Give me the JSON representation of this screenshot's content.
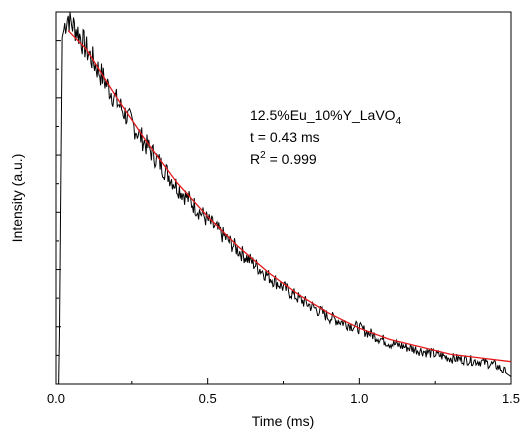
{
  "chart_data": {
    "type": "line",
    "title": "",
    "xlabel": "Time (ms)",
    "ylabel": "Intensity (a.u.)",
    "xlim": [
      0.0,
      1.5
    ],
    "ylim": [
      0.0,
      1.0
    ],
    "x_ticks": [
      "0.0",
      "0.5",
      "1.0",
      "1.5"
    ],
    "y_ticks_labeled": false,
    "grid": false,
    "annotation": {
      "sample": "12.5%Eu_10%Y_LaVO",
      "sample_subscript": "4",
      "lifetime": "t = 0.43 ms",
      "r_squared_prefix": "R",
      "r_squared_sup": "2",
      "r_squared_suffix": " = 0.999"
    },
    "series": [
      {
        "style": "measured",
        "color": "#000000",
        "x": [
          0.0,
          0.01,
          0.02,
          0.03,
          0.04,
          0.05,
          0.07,
          0.1,
          0.15,
          0.2,
          0.3,
          0.4,
          0.5,
          0.6,
          0.7,
          0.8,
          0.9,
          1.0,
          1.1,
          1.2,
          1.3,
          1.4,
          1.45,
          1.5
        ],
        "y": [
          0.0,
          0.0,
          0.93,
          0.97,
          0.99,
          0.97,
          0.95,
          0.9,
          0.83,
          0.76,
          0.64,
          0.53,
          0.44,
          0.36,
          0.29,
          0.23,
          0.18,
          0.15,
          0.11,
          0.09,
          0.07,
          0.06,
          0.05,
          0.02
        ]
      },
      {
        "style": "fit",
        "color": "#e41a1c",
        "x": [
          0.04,
          0.1,
          0.2,
          0.3,
          0.4,
          0.5,
          0.6,
          0.7,
          0.8,
          0.9,
          1.0,
          1.1,
          1.2,
          1.3,
          1.4,
          1.5
        ],
        "y": [
          0.95,
          0.9,
          0.77,
          0.65,
          0.54,
          0.45,
          0.37,
          0.3,
          0.24,
          0.19,
          0.15,
          0.12,
          0.1,
          0.08,
          0.07,
          0.06
        ]
      }
    ]
  }
}
